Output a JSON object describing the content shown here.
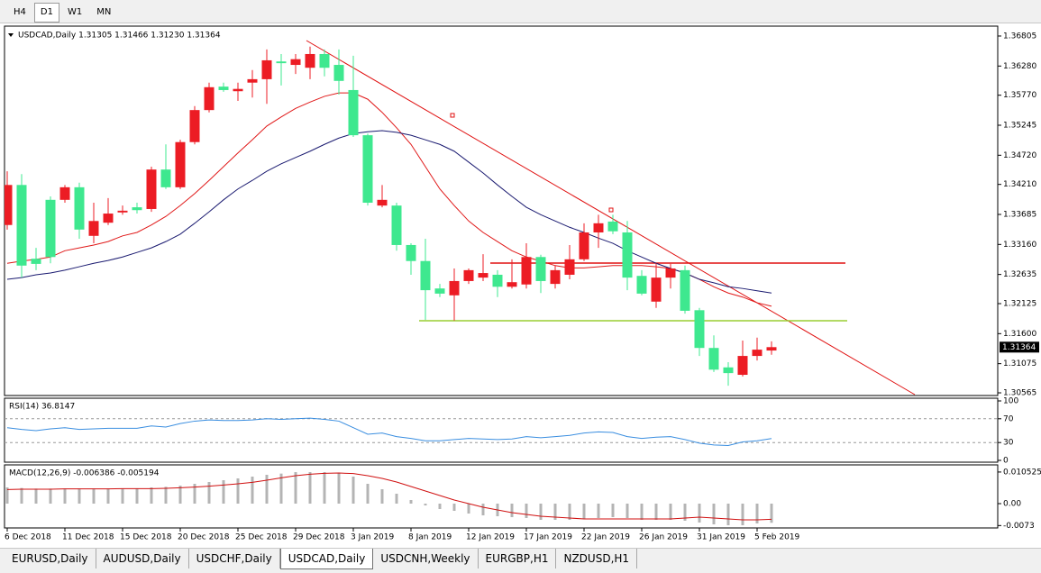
{
  "toolbar": {
    "timeframes": [
      "H4",
      "D1",
      "W1",
      "MN"
    ],
    "active": 1
  },
  "tabs": {
    "items": [
      "EURUSD,Daily",
      "AUDUSD,Daily",
      "USDCHF,Daily",
      "USDCAD,Daily",
      "USDCNH,Weekly",
      "EURGBP,H1",
      "NZDUSD,H1"
    ],
    "active": 3
  },
  "chart_data": [
    {
      "type": "candlestick",
      "title": "USDCAD,Daily  1.31305 1.31466 1.31230 1.31364",
      "categories": [
        "6 Dec 2018",
        null,
        null,
        null,
        "11 Dec 2018",
        null,
        null,
        null,
        "15 Dec 2018",
        null,
        null,
        null,
        "20 Dec 2018",
        null,
        null,
        null,
        "25 Dec 2018",
        null,
        null,
        null,
        "29 Dec 2018",
        null,
        null,
        null,
        "3 Jan 2019",
        null,
        null,
        null,
        "8 Jan 2019",
        null,
        null,
        null,
        "12 Jan 2019",
        null,
        null,
        null,
        "17 Jan 2019",
        null,
        null,
        null,
        "22 Jan 2019",
        null,
        null,
        null,
        "26 Jan 2019",
        null,
        null,
        null,
        "31 Jan 2019",
        null,
        null,
        null,
        "5 Feb 2019",
        null
      ],
      "open": [
        1.335,
        1.342,
        1.3291,
        1.3394,
        1.3394,
        1.3416,
        1.3331,
        1.3354,
        1.3372,
        1.3381,
        1.3378,
        1.3447,
        1.3416,
        1.3495,
        1.3551,
        1.3592,
        1.3584,
        1.3599,
        1.3605,
        1.3636,
        1.363,
        1.3625,
        1.3649,
        1.363,
        1.3586,
        1.3507,
        1.3384,
        1.3384,
        1.3315,
        1.3287,
        1.3239,
        1.3227,
        1.3252,
        1.3258,
        1.3263,
        1.3242,
        1.3246,
        1.3294,
        1.3247,
        1.3263,
        1.329,
        1.3337,
        1.3356,
        1.3337,
        1.3261,
        1.3216,
        1.3258,
        1.3271,
        1.3201,
        1.3135,
        1.3101,
        1.3088,
        1.3121,
        1.31305
      ],
      "high": [
        1.3444,
        1.3439,
        1.331,
        1.34,
        1.342,
        1.3424,
        1.3389,
        1.3397,
        1.3384,
        1.3389,
        1.3452,
        1.3491,
        1.3499,
        1.3558,
        1.3599,
        1.3599,
        1.3599,
        1.3621,
        1.3657,
        1.3649,
        1.3649,
        1.3662,
        1.3657,
        1.3657,
        1.3646,
        1.351,
        1.342,
        1.3389,
        1.3318,
        1.3326,
        1.3247,
        1.3274,
        1.3274,
        1.3299,
        1.3271,
        1.329,
        1.3318,
        1.3298,
        1.3279,
        1.3315,
        1.3353,
        1.3368,
        1.3368,
        1.3357,
        1.3271,
        1.3283,
        1.3282,
        1.3279,
        1.3205,
        1.3157,
        1.311,
        1.3148,
        1.3153,
        1.31466
      ],
      "low": [
        1.3342,
        1.3258,
        1.3271,
        1.3283,
        1.3389,
        1.3326,
        1.3318,
        1.335,
        1.3368,
        1.337,
        1.3373,
        1.3413,
        1.3413,
        1.3491,
        1.3547,
        1.3583,
        1.3567,
        1.3573,
        1.3562,
        1.3594,
        1.3614,
        1.3605,
        1.361,
        1.3578,
        1.3504,
        1.3384,
        1.3381,
        1.3305,
        1.3263,
        1.3184,
        1.3224,
        1.3183,
        1.3247,
        1.3252,
        1.3224,
        1.3239,
        1.3239,
        1.3231,
        1.3239,
        1.3255,
        1.3287,
        1.331,
        1.3334,
        1.3236,
        1.3227,
        1.3205,
        1.3239,
        1.3195,
        1.3121,
        1.3093,
        1.3069,
        1.3085,
        1.3113,
        1.3123
      ],
      "close": [
        1.342,
        1.3279,
        1.3282,
        1.3294,
        1.3416,
        1.3342,
        1.3357,
        1.337,
        1.3375,
        1.3376,
        1.3447,
        1.3416,
        1.3495,
        1.3551,
        1.3591,
        1.3586,
        1.3588,
        1.3605,
        1.3638,
        1.3633,
        1.364,
        1.3649,
        1.3625,
        1.3602,
        1.3507,
        1.3389,
        1.3394,
        1.3315,
        1.3287,
        1.3236,
        1.323,
        1.3252,
        1.3271,
        1.3266,
        1.3242,
        1.325,
        1.3294,
        1.3252,
        1.3271,
        1.329,
        1.3337,
        1.3353,
        1.3339,
        1.3258,
        1.323,
        1.3258,
        1.3274,
        1.32,
        1.3135,
        1.3097,
        1.3091,
        1.3121,
        1.3132,
        1.31364
      ],
      "up_color": "#ec1c24",
      "down_color": "#3ee88f",
      "lines": [
        {
          "color": "#e01818",
          "values": [
            1.3283,
            1.3287,
            1.329,
            1.3294,
            1.3305,
            1.331,
            1.3315,
            1.3321,
            1.3331,
            1.3337,
            1.335,
            1.3365,
            1.3384,
            1.3405,
            1.3428,
            1.3452,
            1.3476,
            1.3499,
            1.3523,
            1.3539,
            1.3554,
            1.3565,
            1.3575,
            1.3581,
            1.3581,
            1.357,
            1.3547,
            1.352,
            1.3491,
            1.3452,
            1.3413,
            1.3384,
            1.3357,
            1.3337,
            1.3321,
            1.3305,
            1.3294,
            1.3287,
            1.3279,
            1.3275,
            1.3275,
            1.3277,
            1.3279,
            1.3279,
            1.3279,
            1.3277,
            1.3274,
            1.3266,
            1.3255,
            1.3242,
            1.3231,
            1.3224,
            1.3214,
            1.3208
          ]
        },
        {
          "color": "#1a1a70",
          "values": [
            1.3255,
            1.3258,
            1.3263,
            1.3266,
            1.3271,
            1.3277,
            1.3283,
            1.3288,
            1.3294,
            1.3302,
            1.331,
            1.3321,
            1.3334,
            1.3353,
            1.3373,
            1.3394,
            1.3413,
            1.3428,
            1.3444,
            1.3457,
            1.3468,
            1.3479,
            1.3491,
            1.3502,
            1.351,
            1.3513,
            1.3515,
            1.3512,
            1.3507,
            1.3499,
            1.3491,
            1.3479,
            1.346,
            1.3441,
            1.342,
            1.34,
            1.3381,
            1.3368,
            1.3357,
            1.3346,
            1.3337,
            1.3327,
            1.3318,
            1.3305,
            1.3294,
            1.3283,
            1.3274,
            1.3266,
            1.3255,
            1.3249,
            1.3242,
            1.3239,
            1.3235,
            1.3231
          ]
        }
      ],
      "ylim": [
        1.30518,
        1.36978
      ],
      "yticks": [
        1.36805,
        {
          "value": 1.3628,
          "label": "1.36280"
        },
        {
          "value": 1.3577,
          "label": "1.35770"
        },
        1.35245,
        {
          "value": 1.3472,
          "label": "1.34720"
        },
        {
          "value": 1.3421,
          "label": "1.34210"
        },
        1.33685,
        {
          "value": 1.3316,
          "label": "1.33160"
        },
        1.32635,
        1.32125,
        {
          "value": 1.316,
          "label": "1.31600"
        },
        1.31075,
        1.30565
      ]
    },
    {
      "type": "line",
      "title": "RSI(14) 36.8147",
      "color": "#3a8ee0",
      "values": [
        55,
        52,
        50,
        53,
        55,
        52,
        53,
        54,
        54,
        54,
        58,
        56,
        62,
        66,
        68,
        67,
        67,
        68,
        70,
        69,
        70,
        71,
        69,
        66,
        55,
        44,
        46,
        40,
        37,
        33,
        33,
        35,
        37,
        36,
        35,
        36,
        40,
        38,
        40,
        42,
        46,
        48,
        47,
        40,
        37,
        39,
        40,
        35,
        29,
        26,
        25,
        31,
        33,
        36.8147
      ],
      "ylim": [
        0,
        100
      ],
      "yticks": [
        100,
        70,
        30,
        0
      ],
      "levels": [
        70,
        30
      ]
    },
    {
      "type": "macd",
      "title": "MACD(12,26,9) -0.006386 -0.005194",
      "color": "#b4b4b4",
      "signal_color": "#d01010",
      "values": [
        0.0054,
        0.0052,
        0.005,
        0.005,
        0.005,
        0.005,
        0.005,
        0.005,
        0.005,
        0.005,
        0.0054,
        0.0056,
        0.006,
        0.0066,
        0.0072,
        0.0078,
        0.0084,
        0.009,
        0.0096,
        0.01,
        0.0105,
        0.0105,
        0.0105,
        0.0102,
        0.009,
        0.0066,
        0.0048,
        0.0033,
        0.0012,
        -0.0006,
        -0.0018,
        -0.0024,
        -0.0033,
        -0.0039,
        -0.0042,
        -0.0045,
        -0.0048,
        -0.0054,
        -0.0054,
        -0.0054,
        -0.0051,
        -0.0048,
        -0.0045,
        -0.0048,
        -0.0054,
        -0.0054,
        -0.0054,
        -0.0057,
        -0.0063,
        -0.0069,
        -0.0072,
        -0.0072,
        -0.0066,
        -0.006386
      ],
      "signal": [
        0.0047,
        0.0048,
        0.0048,
        0.0048,
        0.0049,
        0.0049,
        0.0049,
        0.0049,
        0.005,
        0.005,
        0.005,
        0.0051,
        0.0053,
        0.0055,
        0.0058,
        0.0062,
        0.0066,
        0.0071,
        0.0078,
        0.0086,
        0.0093,
        0.0098,
        0.0101,
        0.0102,
        0.01,
        0.0093,
        0.0084,
        0.0072,
        0.0057,
        0.0042,
        0.0027,
        0.0012,
        0.0,
        -0.0012,
        -0.0021,
        -0.003,
        -0.0036,
        -0.0042,
        -0.0045,
        -0.0048,
        -0.0051,
        -0.0051,
        -0.0051,
        -0.0051,
        -0.0051,
        -0.0051,
        -0.0051,
        -0.0048,
        -0.0045,
        -0.0048,
        -0.0051,
        -0.0054,
        -0.0054,
        -0.005194
      ],
      "ylim": [
        -0.0078,
        0.0126
      ],
      "yticks": [
        0.010525,
        {
          "value": 0,
          "label": "0.00"
        },
        -0.0073
      ]
    }
  ]
}
